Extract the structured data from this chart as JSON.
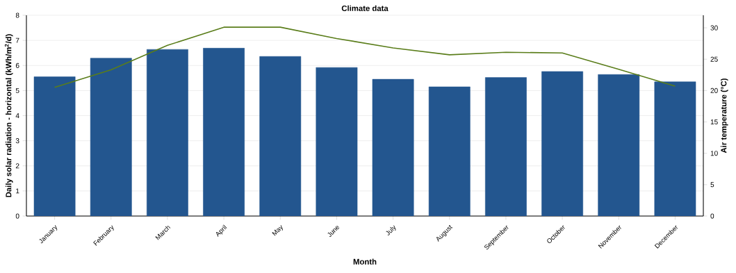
{
  "chart_data": {
    "type": "bar",
    "title": "Climate data",
    "xlabel": "Month",
    "ylabel": "Daily solar radiation - horizontal (kWh/m$^{2}$/d)",
    "y2label": "Air temperature (°C)",
    "categories": [
      "January",
      "February",
      "March",
      "April",
      "May",
      "June",
      "July",
      "August",
      "September",
      "October",
      "November",
      "December"
    ],
    "series": [
      {
        "color": "#23568f",
        "values": [
          5.55,
          6.29,
          6.64,
          6.69,
          6.36,
          5.92,
          5.45,
          5.15,
          5.52,
          5.76,
          5.64,
          5.35
        ]
      },
      {
        "type": "line",
        "axis": "y2",
        "color": "#5a7d1a",
        "values": [
          20.5,
          23.3,
          27.2,
          30.1,
          30.1,
          28.3,
          26.8,
          25.7,
          26.1,
          26.0,
          23.4,
          20.7
        ]
      }
    ],
    "ylim": [
      0,
      8
    ],
    "yticks": [
      0,
      1,
      2,
      3,
      4,
      5,
      6,
      7,
      8
    ],
    "y2lim": [
      0,
      32
    ],
    "y2ticks": [
      0,
      5,
      10,
      15,
      20,
      25,
      30
    ],
    "grid": "y",
    "legend": false,
    "marker": "none",
    "line_style": "solid"
  }
}
